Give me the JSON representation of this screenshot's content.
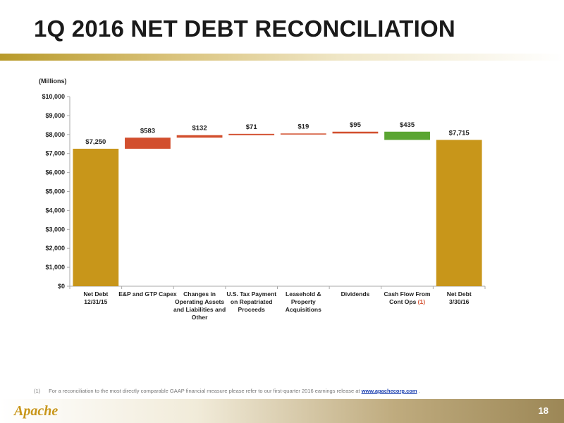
{
  "slide": {
    "title": "1Q 2016 NET DEBT RECONCILIATION",
    "page_number": "18",
    "logo_text": "Apache"
  },
  "footnote": {
    "marker": "(1)",
    "text": "For a reconciliation to the most directly comparable GAAP financial measure please refer to our first-quarter 2016 earnings release at",
    "link": "www.apachecorp.com",
    "trailing": "."
  },
  "colors": {
    "total": "#c8961a",
    "increase": "#d24f2e",
    "decrease": "#5aa532",
    "axis": "#aaaaaa",
    "text": "#222222"
  },
  "chart_data": {
    "type": "bar",
    "subtype": "waterfall",
    "unit_label": "(Millions)",
    "ylim": [
      0,
      10000
    ],
    "y_ticks": [
      0,
      1000,
      2000,
      3000,
      4000,
      5000,
      6000,
      7000,
      8000,
      9000,
      10000
    ],
    "y_tick_labels": [
      "$0",
      "$1,000",
      "$2,000",
      "$3,000",
      "$4,000",
      "$5,000",
      "$6,000",
      "$7,000",
      "$8,000",
      "$9,000",
      "$10,000"
    ],
    "grid": false,
    "legend": "none",
    "categories": [
      [
        "Net Debt",
        "12/31/15"
      ],
      [
        "E&P and GTP Capex"
      ],
      [
        "Changes in",
        "Operating Assets",
        "and Liabilities and",
        "Other"
      ],
      [
        "U.S. Tax Payment",
        "on Repatriated",
        "Proceeds"
      ],
      [
        "Leasehold &",
        "Property",
        "Acquisitions"
      ],
      [
        "Dividends"
      ],
      [
        "Cash Flow From",
        "Cont Ops"
      ],
      [
        "Net Debt",
        "3/30/16"
      ]
    ],
    "category_superscripts": [
      "",
      "",
      "",
      "",
      "",
      "",
      "(1)",
      ""
    ],
    "bars": [
      {
        "kind": "total",
        "value": 7250,
        "label": "$7,250"
      },
      {
        "kind": "increase",
        "value": 583,
        "label": "$583"
      },
      {
        "kind": "increase",
        "value": 132,
        "label": "$132"
      },
      {
        "kind": "increase",
        "value": 71,
        "label": "$71"
      },
      {
        "kind": "increase",
        "value": 19,
        "label": "$19"
      },
      {
        "kind": "increase",
        "value": 95,
        "label": "$95"
      },
      {
        "kind": "decrease",
        "value": 435,
        "label": "$435"
      },
      {
        "kind": "total",
        "value": 7715,
        "label": "$7,715"
      }
    ]
  }
}
